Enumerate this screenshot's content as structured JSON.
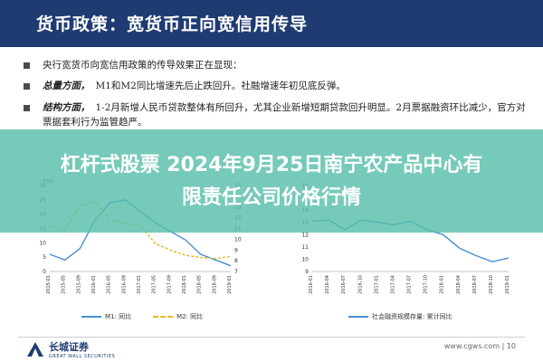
{
  "header": {
    "title": "货币政策：宽货币正向宽信用传导"
  },
  "bullets": [
    {
      "bold": "",
      "text": "央行宽货币向宽信用政策的传导效果正在显现："
    },
    {
      "bold": "总量方面，",
      "text": "M1和M2同比增速先后止跌回升。社融增速年初见底反弹。"
    },
    {
      "bold": "结构方面，",
      "text": "1-2月新增人民币贷款整体有所回升，尤其企业新增短期贷款回升明显。2月票据融资环比减少，官方对票据套利行为监管趋严。"
    }
  ],
  "overlay": {
    "line1": "杠杆式股票 2024年9月25日南宁农产品中心有",
    "line2": "限责任公司价格行情"
  },
  "chart_data": [
    {
      "type": "line",
      "title": "",
      "x": [
        "2015-01",
        "2015-05",
        "2015-09",
        "2016-01",
        "2016-05",
        "2016-09",
        "2017-01",
        "2017-05",
        "2017-09",
        "2018-01",
        "2018-05",
        "2018-09",
        "2019-01"
      ],
      "series": [
        {
          "name": "M1: 同比",
          "axis": "left",
          "values": [
            6,
            4,
            8,
            18,
            24,
            25,
            21,
            17,
            14,
            11,
            6,
            4,
            2
          ]
        },
        {
          "name": "M2: 同比",
          "axis": "right",
          "values": [
            11.2,
            10.8,
            13.1,
            13.5,
            11.8,
            11.5,
            11.3,
            9.6,
            9.0,
            8.5,
            8.3,
            8.2,
            8.4
          ]
        }
      ],
      "left_axis": {
        "label": "(%)",
        "ticks": [
          0,
          5,
          10,
          15,
          20,
          25,
          30
        ],
        "range": [
          0,
          30
        ]
      },
      "right_axis": {
        "ticks": [
          7,
          8,
          9,
          10,
          11,
          12,
          13,
          14,
          15
        ],
        "range": [
          7,
          15
        ]
      },
      "legend": "bottom"
    },
    {
      "type": "line",
      "title": "",
      "x": [
        "2016-01",
        "2016-04",
        "2016-07",
        "2016-10",
        "2017-01",
        "2017-04",
        "2017-07",
        "2017-10",
        "2018-01",
        "2018-04",
        "2018-07",
        "2018-10",
        "2019-01"
      ],
      "series": [
        {
          "name": "社会融资规模存量: 累计同比",
          "values": [
            13.1,
            13.2,
            12.4,
            13.2,
            13.0,
            12.8,
            13.1,
            12.4,
            12.0,
            10.9,
            10.3,
            9.8,
            10.1
          ]
        }
      ],
      "left_axis": {
        "ticks": [
          9,
          10,
          11,
          12,
          13,
          14,
          15,
          16
        ],
        "range": [
          9,
          16
        ]
      },
      "legend": "bottom"
    }
  ],
  "legend": {
    "left": [
      {
        "label": "M1: 同比",
        "color": "#4a8fd0"
      },
      {
        "label": "M2: 同比",
        "color": "#e3b928"
      }
    ],
    "right": [
      {
        "label": "社会融资规模存量: 累计同比",
        "color": "#4a8fd0"
      }
    ]
  },
  "footer": {
    "logo_cn": "长城证券",
    "logo_en": "GREAT WALL SECURITIES",
    "site": "www.cgws.com",
    "separator": "|",
    "page": "10"
  }
}
